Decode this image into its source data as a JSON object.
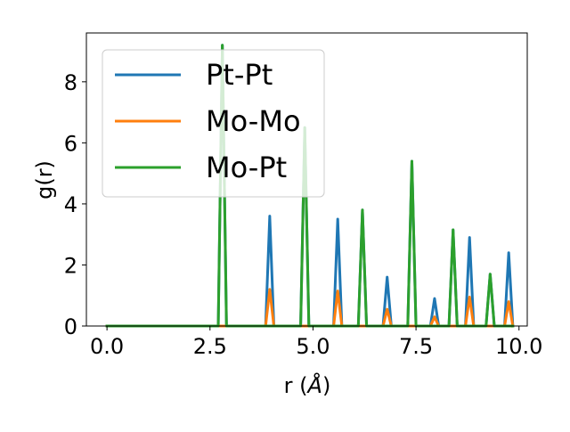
{
  "chart_data": {
    "type": "line",
    "title": "",
    "xlabel_prefix": "r (",
    "xlabel_unit": "Å",
    "xlabel_suffix": ")",
    "ylabel": "g(r)",
    "xlim": [
      -0.5,
      10.2
    ],
    "ylim": [
      0,
      9.6
    ],
    "xticks": [
      0.0,
      2.5,
      5.0,
      7.5,
      10.0
    ],
    "xtick_labels": [
      "0.0",
      "2.5",
      "5.0",
      "7.5",
      "10.0"
    ],
    "yticks": [
      0,
      2,
      4,
      6,
      8
    ],
    "ytick_labels": [
      "0",
      "2",
      "4",
      "6",
      "8"
    ],
    "grid": false,
    "legend_position": "top-left",
    "peak_halfwidth": 0.1,
    "series": [
      {
        "name": "Pt-Pt",
        "color": "#1f77b4",
        "peaks": [
          {
            "r": 2.8,
            "g": 9.2
          },
          {
            "r": 3.95,
            "g": 3.6
          },
          {
            "r": 4.8,
            "g": 6.5
          },
          {
            "r": 5.6,
            "g": 3.5
          },
          {
            "r": 6.2,
            "g": 3.8
          },
          {
            "r": 6.8,
            "g": 1.6
          },
          {
            "r": 7.4,
            "g": 5.4
          },
          {
            "r": 7.95,
            "g": 0.9
          },
          {
            "r": 8.4,
            "g": 3.15
          },
          {
            "r": 8.8,
            "g": 2.9
          },
          {
            "r": 9.3,
            "g": 1.7
          },
          {
            "r": 9.75,
            "g": 2.4
          }
        ]
      },
      {
        "name": "Mo-Mo",
        "color": "#ff7f0e",
        "peaks": [
          {
            "r": 3.95,
            "g": 1.2
          },
          {
            "r": 5.6,
            "g": 1.15
          },
          {
            "r": 6.8,
            "g": 0.55
          },
          {
            "r": 7.95,
            "g": 0.3
          },
          {
            "r": 8.8,
            "g": 0.95
          },
          {
            "r": 9.75,
            "g": 0.8
          }
        ]
      },
      {
        "name": "Mo-Pt",
        "color": "#2ca02c",
        "peaks": [
          {
            "r": 2.8,
            "g": 9.2
          },
          {
            "r": 4.8,
            "g": 6.5
          },
          {
            "r": 6.2,
            "g": 3.8
          },
          {
            "r": 7.4,
            "g": 5.4
          },
          {
            "r": 8.4,
            "g": 3.15
          },
          {
            "r": 9.3,
            "g": 1.7
          }
        ]
      }
    ]
  }
}
